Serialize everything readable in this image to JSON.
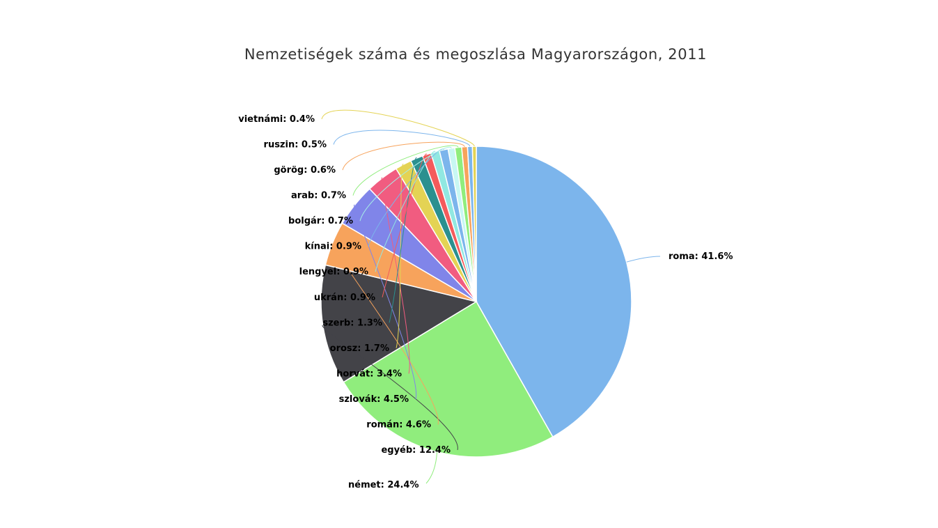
{
  "chart_data": {
    "type": "pie",
    "title": "Nemzetiségek száma és megoszlása Magyarországon, 2011",
    "slices": [
      {
        "name": "roma",
        "value": 41.6,
        "label": "roma: 41.6%",
        "color": "#7cb5ec"
      },
      {
        "name": "német",
        "value": 24.4,
        "label": "német: 24.4%",
        "color": "#90ed7d"
      },
      {
        "name": "egyéb",
        "value": 12.4,
        "label": "egyéb: 12.4%",
        "color": "#434348"
      },
      {
        "name": "román",
        "value": 4.6,
        "label": "román: 4.6%",
        "color": "#f7a35c"
      },
      {
        "name": "szlovák",
        "value": 4.5,
        "label": "szlovák: 4.5%",
        "color": "#8085e9"
      },
      {
        "name": "horvát",
        "value": 3.4,
        "label": "horvát: 3.4%",
        "color": "#f15c80"
      },
      {
        "name": "orosz",
        "value": 1.7,
        "label": "orosz: 1.7%",
        "color": "#e4d354"
      },
      {
        "name": "szerb",
        "value": 1.3,
        "label": "szerb: 1.3%",
        "color": "#2b908f"
      },
      {
        "name": "ukrán",
        "value": 0.9,
        "label": "ukrán: 0.9%",
        "color": "#f45b5b"
      },
      {
        "name": "lengyel",
        "value": 0.9,
        "label": "lengyel: 0.9%",
        "color": "#91e8e1"
      },
      {
        "name": "kínai",
        "value": 0.9,
        "label": "kínai: 0.9%",
        "color": "#7cb5ec"
      },
      {
        "name": "bolgár",
        "value": 0.7,
        "label": "bolgár: 0.7%",
        "color": "#c8f7f3"
      },
      {
        "name": "arab",
        "value": 0.7,
        "label": "arab: 0.7%",
        "color": "#90ed7d"
      },
      {
        "name": "görög",
        "value": 0.6,
        "label": "görög: 0.6%",
        "color": "#f7a35c"
      },
      {
        "name": "ruszin",
        "value": 0.5,
        "label": "ruszin: 0.5%",
        "color": "#7cb5ec"
      },
      {
        "name": "vietnámi",
        "value": 0.4,
        "label": "vietnámi: 0.4%",
        "color": "#e4d354"
      }
    ]
  }
}
